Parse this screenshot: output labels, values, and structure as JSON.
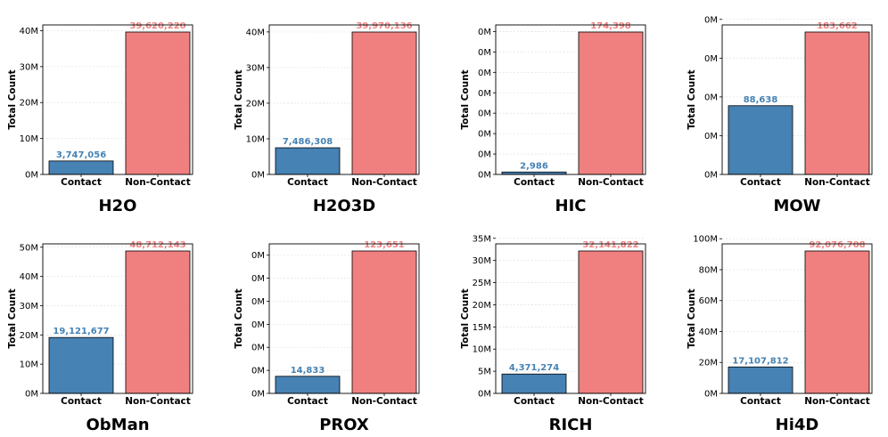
{
  "colors": {
    "contact": "#4682B4",
    "non_contact": "#F08080",
    "grid": "#E4E4E4"
  },
  "chart_data": [
    {
      "type": "bar",
      "title": "H2O",
      "ylabel": "Total Count",
      "categories": [
        "Contact",
        "Non-Contact"
      ],
      "values": [
        3747056,
        39620220
      ],
      "value_labels": [
        "3,747,056",
        "39,620,220"
      ],
      "ylim": [
        0,
        41601231
      ],
      "ticks": [
        0,
        10000000,
        20000000,
        30000000,
        40000000
      ],
      "tick_labels": [
        "0M",
        "10M",
        "20M",
        "30M",
        "40M"
      ]
    },
    {
      "type": "bar",
      "title": "H2O3D",
      "ylabel": "Total Count",
      "categories": [
        "Contact",
        "Non-Contact"
      ],
      "values": [
        7486308,
        39970136
      ],
      "value_labels": [
        "7,486,308",
        "39,970,136"
      ],
      "ylim": [
        0,
        41968643
      ],
      "ticks": [
        0,
        10000000,
        20000000,
        30000000,
        40000000
      ],
      "tick_labels": [
        "0M",
        "10M",
        "20M",
        "30M",
        "40M"
      ]
    },
    {
      "type": "bar",
      "title": "HIC",
      "ylabel": "Total Count",
      "categories": [
        "Contact",
        "Non-Contact"
      ],
      "values": [
        2986,
        174398
      ],
      "value_labels": [
        "2,986",
        "174,398"
      ],
      "ylim": [
        0,
        183118
      ],
      "ticks": [
        0,
        25000,
        50000,
        75000,
        100000,
        125000,
        150000,
        175000
      ],
      "tick_labels": [
        "0M",
        "0M",
        "0M",
        "0M",
        "0M",
        "0M",
        "0M",
        "0M"
      ]
    },
    {
      "type": "bar",
      "title": "MOW",
      "ylabel": "Total Count",
      "categories": [
        "Contact",
        "Non-Contact"
      ],
      "values": [
        88638,
        183662
      ],
      "value_labels": [
        "88,638",
        "183,662"
      ],
      "ylim": [
        0,
        192845
      ],
      "ticks": [
        0,
        50000,
        100000,
        150000,
        200000
      ],
      "tick_labels": [
        "0M",
        "0M",
        "0M",
        "0M",
        "0M"
      ]
    },
    {
      "type": "bar",
      "title": "ObMan",
      "ylabel": "Total Count",
      "categories": [
        "Contact",
        "Non-Contact"
      ],
      "values": [
        19121677,
        48712143
      ],
      "value_labels": [
        "19,121,677",
        "48,712,143"
      ],
      "ylim": [
        0,
        51147750
      ],
      "ticks": [
        0,
        10000000,
        20000000,
        30000000,
        40000000,
        50000000
      ],
      "tick_labels": [
        "0M",
        "10M",
        "20M",
        "30M",
        "40M",
        "50M"
      ]
    },
    {
      "type": "bar",
      "title": "PROX",
      "ylabel": "Total Count",
      "categories": [
        "Contact",
        "Non-Contact"
      ],
      "values": [
        14833,
        123651
      ],
      "value_labels": [
        "14,833",
        "123,651"
      ],
      "ylim": [
        0,
        129834
      ],
      "ticks": [
        0,
        20000,
        40000,
        60000,
        80000,
        100000,
        120000
      ],
      "tick_labels": [
        "0M",
        "0M",
        "0M",
        "0M",
        "0M",
        "0M",
        "0M"
      ]
    },
    {
      "type": "bar",
      "title": "RICH",
      "ylabel": "Total Count",
      "categories": [
        "Contact",
        "Non-Contact"
      ],
      "values": [
        4371274,
        32141822
      ],
      "value_labels": [
        "4,371,274",
        "32,141,822"
      ],
      "ylim": [
        0,
        33748913
      ],
      "ticks": [
        0,
        5000000,
        10000000,
        15000000,
        20000000,
        25000000,
        30000000,
        35000000
      ],
      "tick_labels": [
        "0M",
        "5M",
        "10M",
        "15M",
        "20M",
        "25M",
        "30M",
        "35M"
      ]
    },
    {
      "type": "bar",
      "title": "Hi4D",
      "ylabel": "Total Count",
      "categories": [
        "Contact",
        "Non-Contact"
      ],
      "values": [
        17107812,
        92076708
      ],
      "value_labels": [
        "17,107,812",
        "92,076,708"
      ],
      "ylim": [
        0,
        96680543
      ],
      "ticks": [
        0,
        20000000,
        40000000,
        60000000,
        80000000,
        100000000
      ],
      "tick_labels": [
        "0M",
        "20M",
        "40M",
        "60M",
        "80M",
        "100M"
      ]
    }
  ]
}
